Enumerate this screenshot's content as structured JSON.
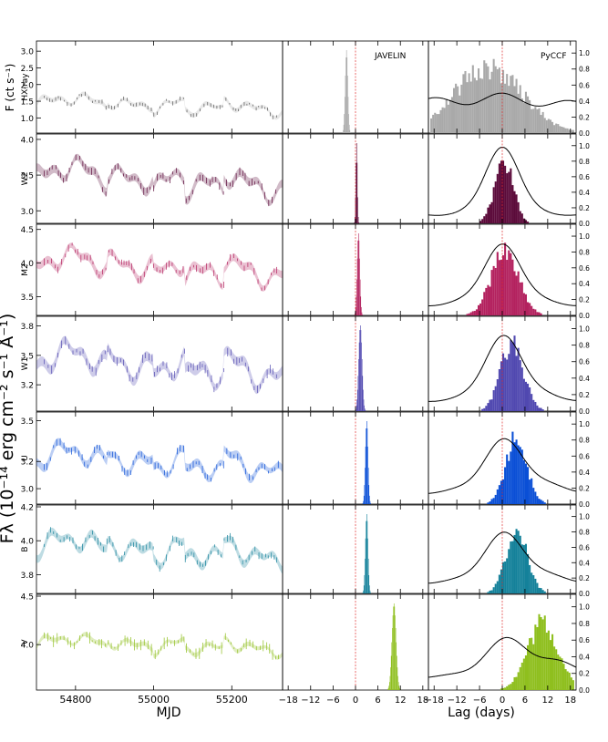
{
  "figure": {
    "y_axis_label": "Fλ (10⁻¹⁴ erg cm⁻² s⁻¹ Å⁻¹)",
    "top_panel_ylabel": "F (ct s⁻¹)",
    "lightcurve_xlabel": "MJD",
    "lag_xlabel": "Lag (days)",
    "javelin_title": "JAVELIN",
    "pyccf_title": "PyCCF"
  },
  "chart_data": {
    "type": "multi-panel",
    "lightcurve_xlim": [
      54700,
      55330
    ],
    "lightcurve_xticks": [
      54800,
      55000,
      55200
    ],
    "lag_xlim": [
      -19.5,
      19.5
    ],
    "lag_xticks": [
      -18,
      -12,
      -6,
      0,
      6,
      12,
      18
    ],
    "ccf_ylim": [
      0,
      1.15
    ],
    "ccf_yticks": [
      0.0,
      0.2,
      0.4,
      0.6,
      0.8,
      1.0
    ],
    "bands": [
      {
        "band": "HX-ray",
        "color": "#a9a9a9",
        "ylim": [
          0.6,
          3.25
        ],
        "yticks": [
          1.0,
          1.5,
          2.0,
          2.5,
          3.0
        ],
        "level": 1.4,
        "amp": 0.35,
        "javelin_center": -2.4,
        "javelin_width": 0.35,
        "pyccf_center": -4.0,
        "pyccf_width": 9.0,
        "ccf_peak": 0.5,
        "ccf_width": 20
      },
      {
        "band": "W2",
        "color": "#5b0a3a",
        "ylim": [
          2.85,
          4.05
        ],
        "yticks": [
          3.0,
          3.5,
          4.0
        ],
        "level": 3.45,
        "amp": 0.3,
        "javelin_center": 0.3,
        "javelin_width": 0.2,
        "pyccf_center": 0.2,
        "pyccf_width": 2.4,
        "ccf_peak": 0.98,
        "ccf_width": 6
      },
      {
        "band": "M2",
        "color": "#b3215e",
        "ylim": [
          3.25,
          4.55
        ],
        "yticks": [
          3.5,
          4.0,
          4.5
        ],
        "level": 3.95,
        "amp": 0.3,
        "javelin_center": 0.8,
        "javelin_width": 0.35,
        "pyccf_center": 0.5,
        "pyccf_width": 3.6,
        "ccf_peak": 0.9,
        "ccf_width": 7
      },
      {
        "band": "W1",
        "color": "#5048b0",
        "ylim": [
          2.95,
          3.88
        ],
        "yticks": [
          3.2,
          3.5,
          3.8
        ],
        "level": 3.4,
        "amp": 0.25,
        "javelin_center": 1.3,
        "javelin_width": 0.45,
        "pyccf_center": 2.4,
        "pyccf_width": 3.0,
        "ccf_peak": 0.92,
        "ccf_width": 7
      },
      {
        "band": "U",
        "color": "#0a4fd6",
        "ylim": [
          2.9,
          3.55
        ],
        "yticks": [
          3.0,
          3.2,
          3.5
        ],
        "level": 3.2,
        "amp": 0.15,
        "javelin_center": 3.0,
        "javelin_width": 0.35,
        "pyccf_center": 3.5,
        "pyccf_width": 2.8,
        "ccf_peak": 0.82,
        "ccf_width": 8
      },
      {
        "band": "B",
        "color": "#14819a",
        "ylim": [
          3.7,
          4.2
        ],
        "yticks": [
          3.8,
          4.0,
          4.2
        ],
        "level": 3.95,
        "amp": 0.12,
        "javelin_center": 3.0,
        "javelin_width": 0.35,
        "pyccf_center": 3.6,
        "pyccf_width": 2.8,
        "ccf_peak": 0.8,
        "ccf_width": 8
      },
      {
        "band": "V",
        "color": "#8fbf1e",
        "ylim": [
          3.55,
          4.5
        ],
        "yticks": [
          4.0,
          4.5
        ],
        "level": 4.0,
        "amp": 0.12,
        "javelin_center": 10.3,
        "javelin_width": 0.55,
        "pyccf_center": 10.5,
        "pyccf_width": 4.0,
        "ccf_peak": 0.65,
        "ccf_width": 10
      }
    ]
  }
}
